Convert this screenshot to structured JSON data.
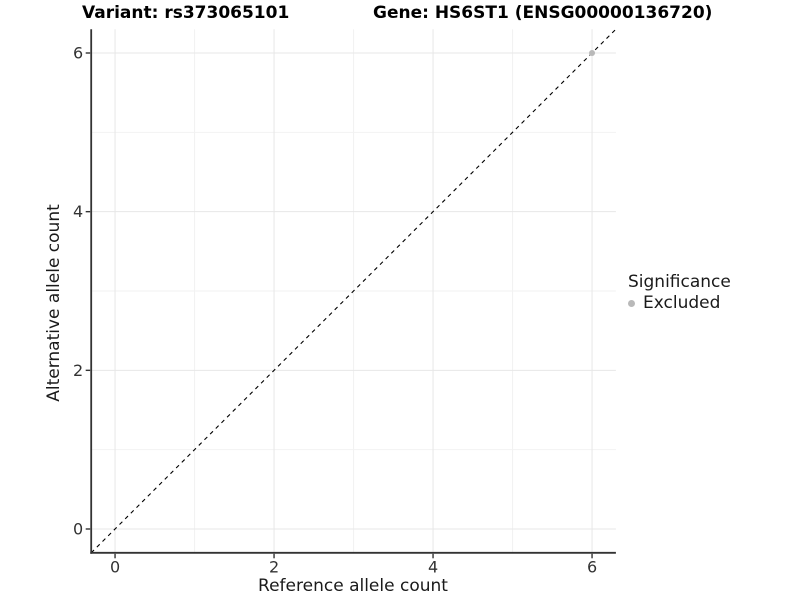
{
  "chart_data": {
    "type": "scatter",
    "titles": {
      "left": "Variant: rs373065101",
      "right": "Gene: HS6ST1 (ENSG00000136720)"
    },
    "xlabel": "Reference allele count",
    "ylabel": "Alternative allele count",
    "xlim": [
      -0.3,
      6.3
    ],
    "ylim": [
      -0.3,
      6.3
    ],
    "x_major_ticks": [
      0,
      2,
      4,
      6
    ],
    "y_major_ticks": [
      0,
      2,
      4,
      6
    ],
    "x_minor_ticks": [
      1,
      3,
      5
    ],
    "y_minor_ticks": [
      1,
      3,
      5
    ],
    "grid": true,
    "abline": {
      "slope": 1,
      "intercept": 0,
      "style": "dashed",
      "color": "#000000"
    },
    "points": [
      {
        "x": 6,
        "y": 6,
        "significance": "Excluded"
      }
    ],
    "legend": {
      "position": "right",
      "title": "Significance",
      "items": [
        {
          "label": "Excluded",
          "color": "#b9b9b9",
          "marker": "circle"
        }
      ]
    },
    "colors": {
      "axis": "#333333",
      "tick_text": "#333333",
      "grid_major": "#e7e7e7",
      "grid_minor": "#f2f2f2",
      "point": "#b9b9b9"
    }
  }
}
